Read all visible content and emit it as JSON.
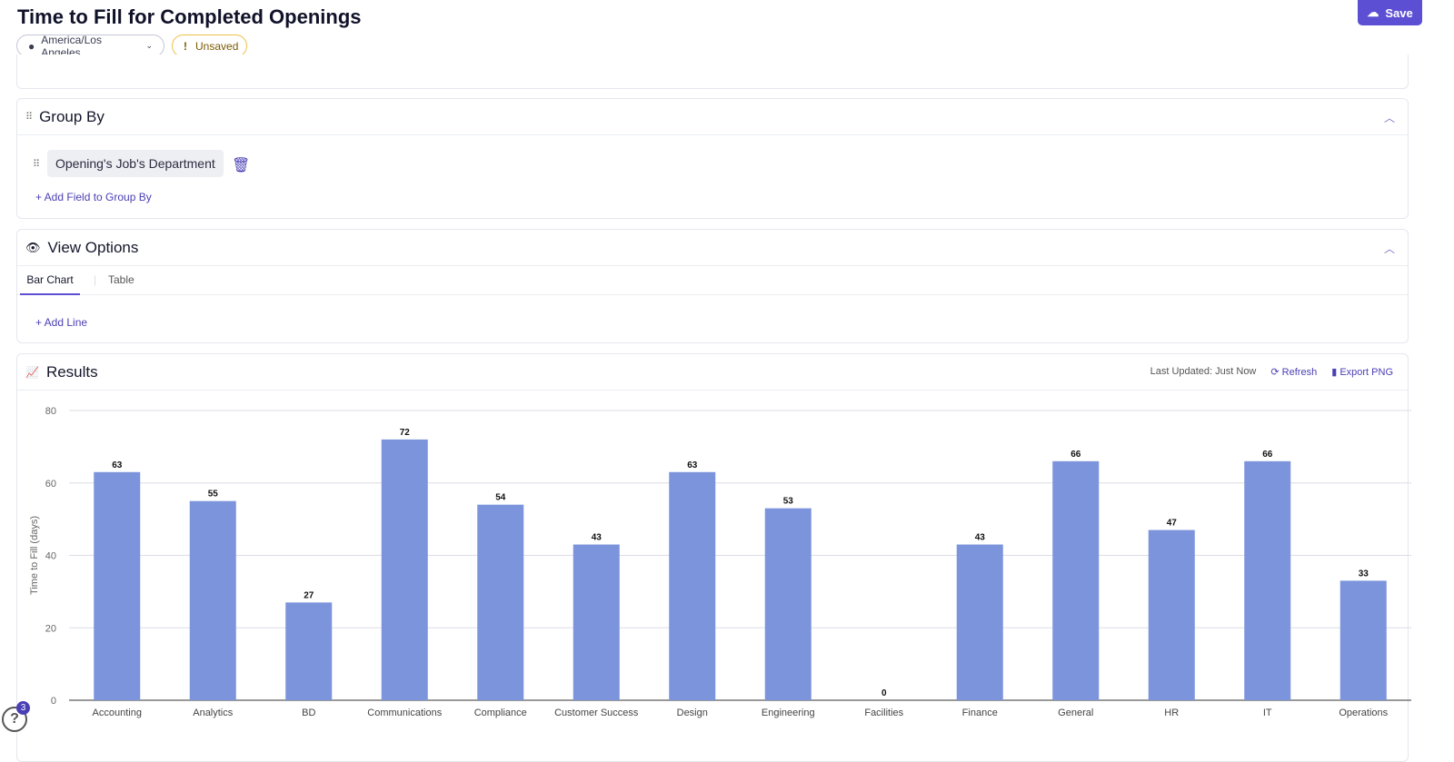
{
  "header": {
    "title": "Time to Fill for Completed Openings",
    "timezone": "America/Los Angeles",
    "status": "Unsaved",
    "save_label": "Save"
  },
  "group_by": {
    "title": "Group By",
    "field": "Opening's Job's Department",
    "add_label": "+ Add Field to Group By"
  },
  "view_options": {
    "title": "View Options",
    "tabs": [
      "Bar Chart",
      "Table"
    ],
    "active_tab": "Bar Chart",
    "add_line": "+ Add Line"
  },
  "results": {
    "title": "Results",
    "last_updated": "Last Updated: Just Now",
    "refresh": "Refresh",
    "export": "Export PNG"
  },
  "help": {
    "badge": "3",
    "label": "?"
  },
  "colors": {
    "bar": "#7b94dc",
    "accent": "#5d4fd3"
  },
  "chart_data": {
    "type": "bar",
    "ylabel": "Time to Fill (days)",
    "xlabel": "",
    "ylim": [
      0,
      80
    ],
    "yticks": [
      0,
      20,
      40,
      60,
      80
    ],
    "grid": true,
    "categories": [
      "Accounting",
      "Analytics",
      "BD",
      "Communications",
      "Compliance",
      "Customer Success",
      "Design",
      "Engineering",
      "Facilities",
      "Finance",
      "General",
      "HR",
      "IT",
      "Operations"
    ],
    "values": [
      63,
      55,
      27,
      72,
      54,
      43,
      63,
      53,
      0,
      43,
      66,
      47,
      66,
      33
    ]
  }
}
